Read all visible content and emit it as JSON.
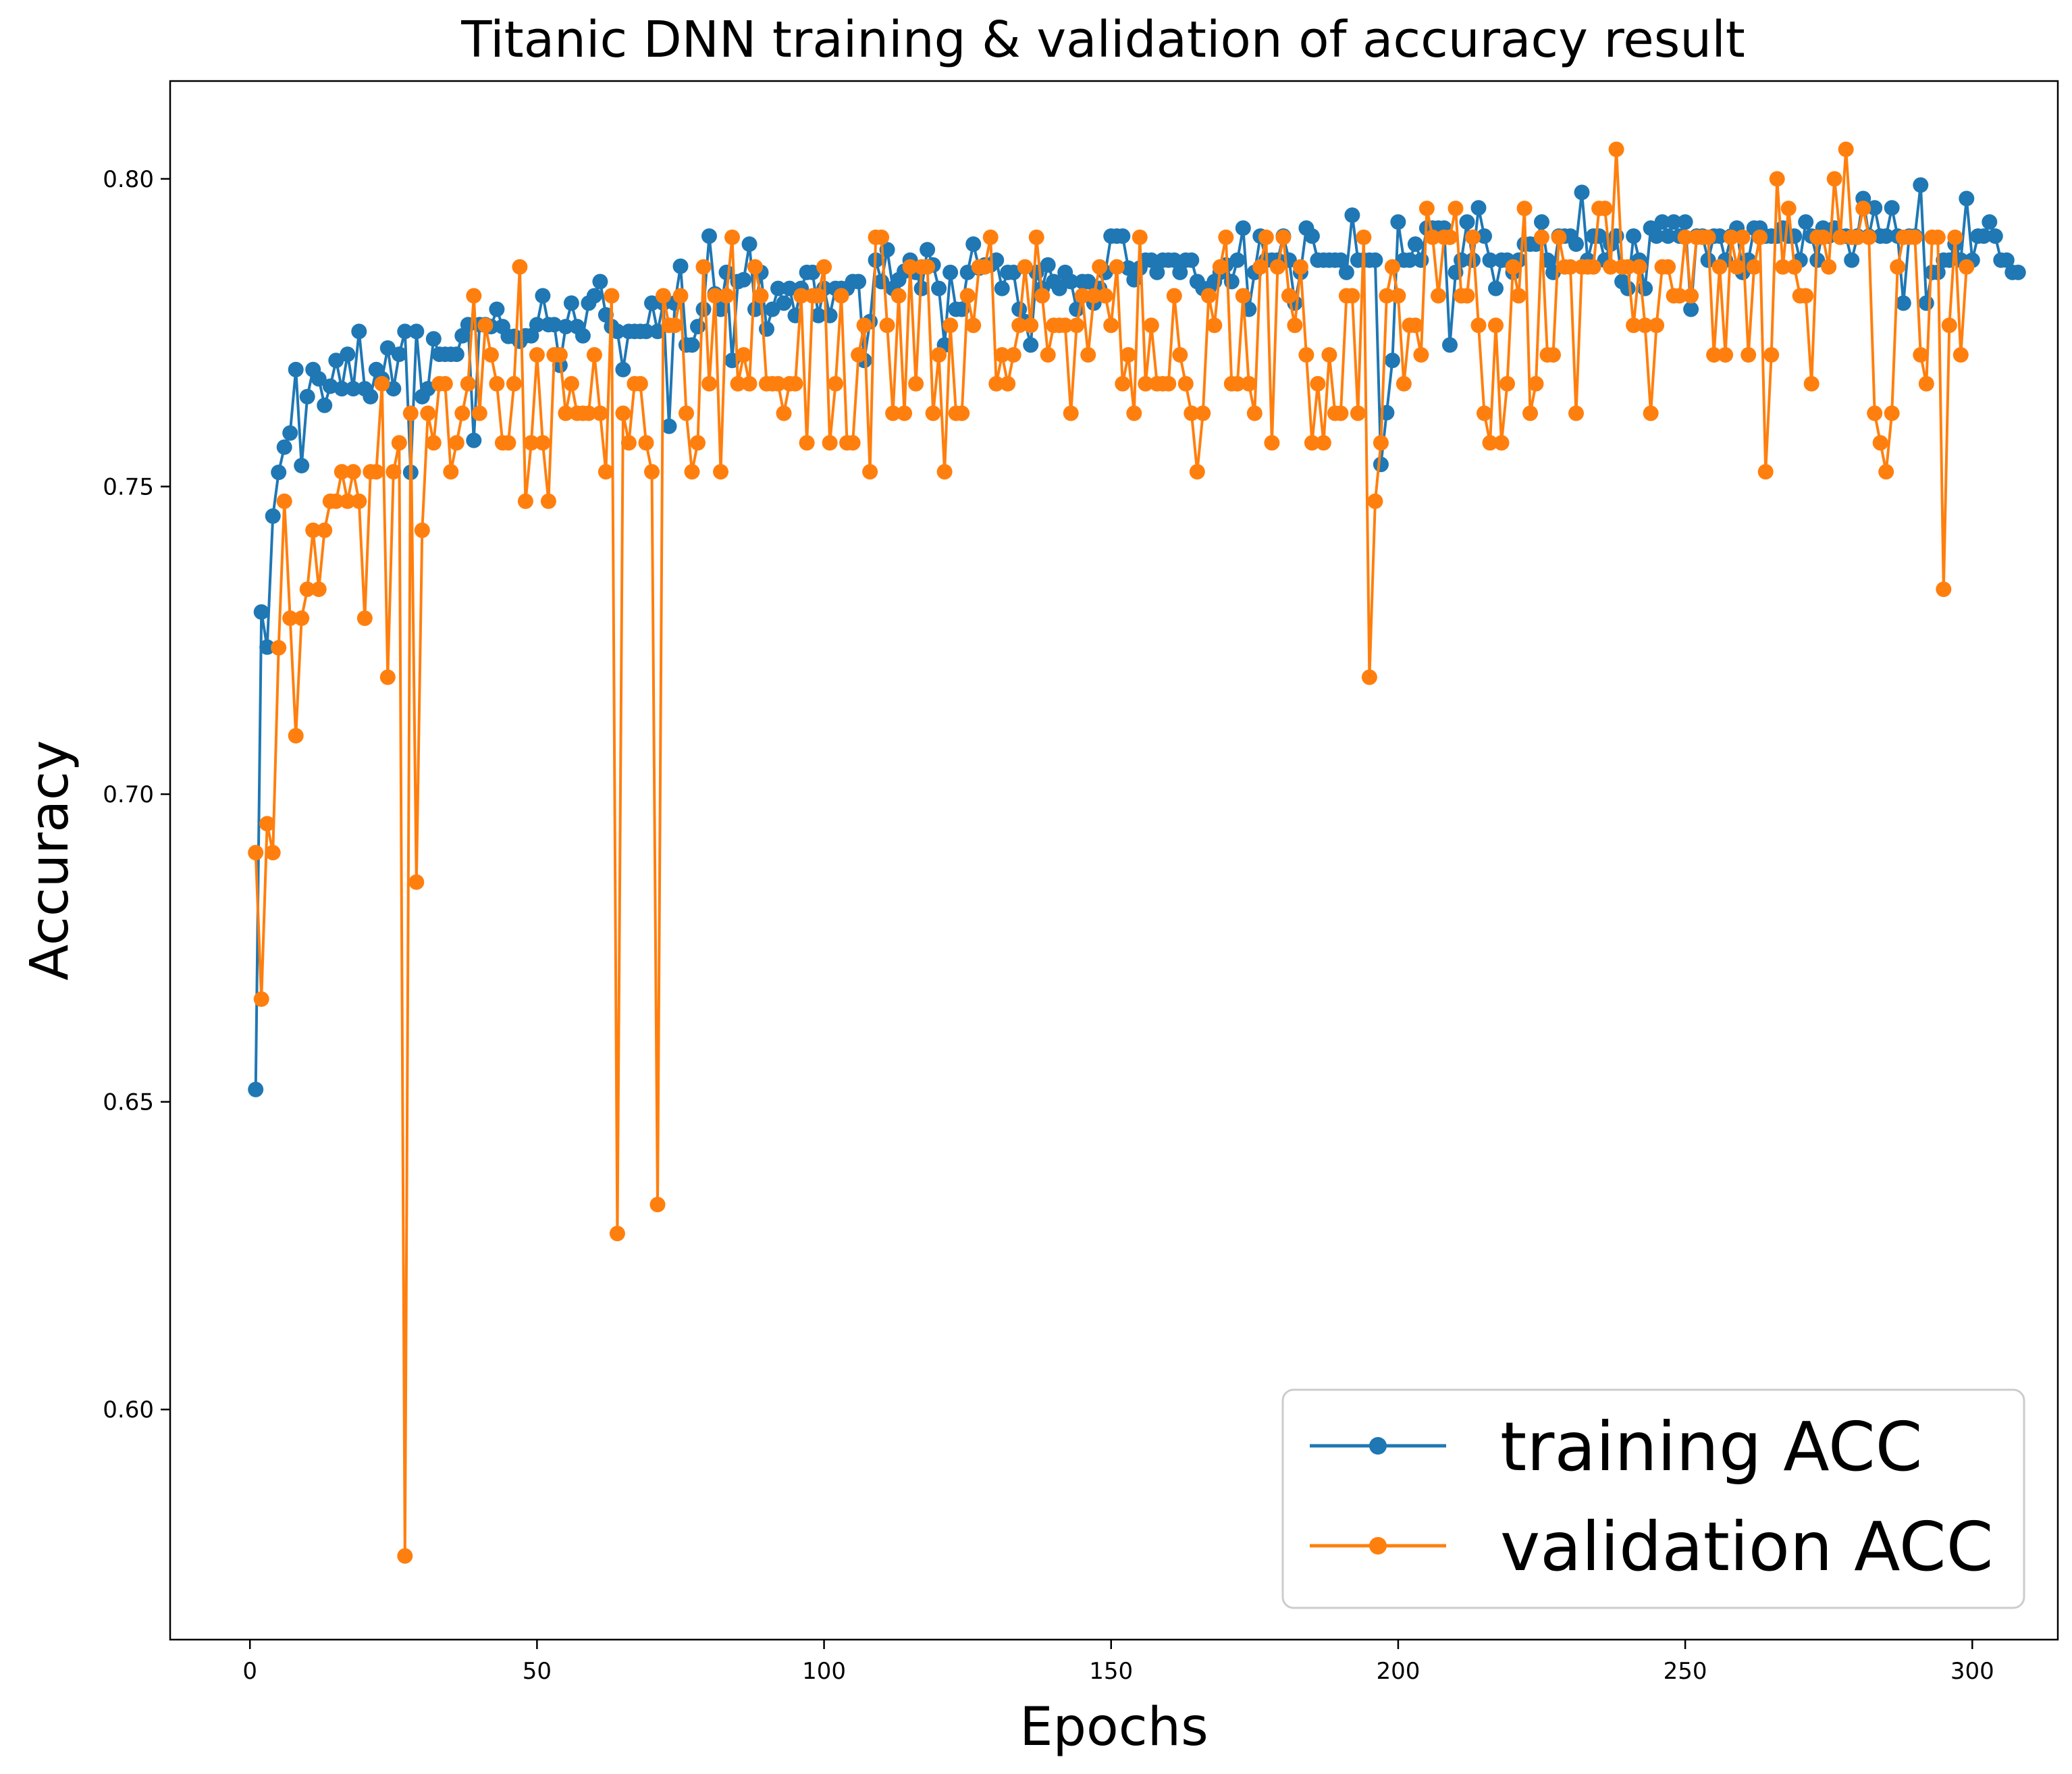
{
  "chart_data": {
    "type": "line",
    "title": "Titanic DNN training & validation of accuracy result",
    "xlabel": "Epochs",
    "ylabel": "Accuracy",
    "xlim": [
      -13.9,
      314.9
    ],
    "ylim": [
      0.5626,
      0.8159
    ],
    "xticks": [
      0,
      50,
      100,
      150,
      200,
      250,
      300
    ],
    "yticks": [
      0.6,
      0.65,
      0.7,
      0.75,
      0.8
    ],
    "ytick_labels": [
      "0.60",
      "0.65",
      "0.70",
      "0.75",
      "0.80"
    ],
    "grid": false,
    "legend_position": "lower right",
    "series": [
      {
        "name": "training ACC",
        "color": "#1f77b4",
        "marker": "circle",
        "x_start": 1,
        "x_step": 1,
        "values": [
          0.652,
          0.7296,
          0.7239,
          0.7452,
          0.7523,
          0.7564,
          0.7587,
          0.769,
          0.7534,
          0.7646,
          0.769,
          0.7675,
          0.7632,
          0.7663,
          0.7705,
          0.7659,
          0.7715,
          0.7659,
          0.7752,
          0.7659,
          0.7646,
          0.769,
          0.7675,
          0.7725,
          0.7659,
          0.7715,
          0.7752,
          0.7523,
          0.7752,
          0.7646,
          0.7659,
          0.774,
          0.7715,
          0.7715,
          0.7715,
          0.7715,
          0.7745,
          0.7763,
          0.7575,
          0.7763,
          0.7763,
          0.776,
          0.7788,
          0.776,
          0.7744,
          0.7744,
          0.7736,
          0.7745,
          0.7745,
          0.7763,
          0.781,
          0.7763,
          0.7763,
          0.7697,
          0.776,
          0.7798,
          0.776,
          0.7745,
          0.7798,
          0.781,
          0.7833,
          0.7779,
          0.776,
          0.7752,
          0.769,
          0.7752,
          0.7752,
          0.7752,
          0.7752,
          0.7798,
          0.7752,
          0.7798,
          0.7598,
          0.7798,
          0.7858,
          0.773,
          0.773,
          0.776,
          0.7788,
          0.7907,
          0.7813,
          0.7788,
          0.7848,
          0.7705,
          0.7833,
          0.7836,
          0.7894,
          0.7788,
          0.7848,
          0.7756,
          0.7788,
          0.7822,
          0.7798,
          0.7822,
          0.7778,
          0.7822,
          0.7848,
          0.7848,
          0.7778,
          0.7822,
          0.7778,
          0.7822,
          0.7822,
          0.7822,
          0.7833,
          0.7833,
          0.7705,
          0.7768,
          0.7868,
          0.7833,
          0.7885,
          0.7822,
          0.7836,
          0.785,
          0.7868,
          0.7848,
          0.7822,
          0.7885,
          0.786,
          0.7822,
          0.773,
          0.7848,
          0.7788,
          0.7788,
          0.7848,
          0.7894,
          0.7855,
          0.786,
          0.786,
          0.7868,
          0.7822,
          0.7848,
          0.7848,
          0.7788,
          0.7768,
          0.773,
          0.7848,
          0.7822,
          0.786,
          0.7833,
          0.7822,
          0.7848,
          0.7833,
          0.7788,
          0.7833,
          0.7833,
          0.7798,
          0.7822,
          0.7848,
          0.7907,
          0.7907,
          0.7907,
          0.7855,
          0.7836,
          0.7855,
          0.7868,
          0.7868,
          0.7848,
          0.7868,
          0.7868,
          0.7868,
          0.7848,
          0.7868,
          0.7868,
          0.7833,
          0.7822,
          0.7822,
          0.7833,
          0.7848,
          0.786,
          0.7833,
          0.7868,
          0.792,
          0.7788,
          0.7848,
          0.7907,
          0.7868,
          0.7868,
          0.7868,
          0.7907,
          0.7868,
          0.7798,
          0.7848,
          0.792,
          0.7907,
          0.7868,
          0.7868,
          0.7868,
          0.7868,
          0.7868,
          0.7848,
          0.7941,
          0.7868,
          0.7868,
          0.7868,
          0.7868,
          0.7536,
          0.762,
          0.7705,
          0.793,
          0.7868,
          0.7868,
          0.7894,
          0.7868,
          0.792,
          0.792,
          0.792,
          0.792,
          0.773,
          0.7848,
          0.7868,
          0.793,
          0.7868,
          0.7953,
          0.7907,
          0.7868,
          0.7822,
          0.7868,
          0.7868,
          0.7848,
          0.7868,
          0.7894,
          0.7894,
          0.7894,
          0.793,
          0.7868,
          0.7848,
          0.7907,
          0.7907,
          0.7907,
          0.7894,
          0.7978,
          0.7868,
          0.7907,
          0.7907,
          0.7868,
          0.7894,
          0.7907,
          0.7833,
          0.7822,
          0.7907,
          0.7868,
          0.7822,
          0.792,
          0.7907,
          0.793,
          0.7907,
          0.793,
          0.7907,
          0.793,
          0.7788,
          0.7907,
          0.7907,
          0.7868,
          0.7907,
          0.7907,
          0.7868,
          0.7907,
          0.792,
          0.7848,
          0.7868,
          0.792,
          0.792,
          0.7907,
          0.7907,
          0.7907,
          0.792,
          0.7907,
          0.7907,
          0.7868,
          0.793,
          0.7907,
          0.7868,
          0.792,
          0.7907,
          0.792,
          0.7907,
          0.7907,
          0.7868,
          0.7907,
          0.7968,
          0.7907,
          0.7953,
          0.7907,
          0.7907,
          0.7953,
          0.7907,
          0.7798,
          0.7907,
          0.7907,
          0.799,
          0.7798,
          0.7848,
          0.7848,
          0.7868,
          0.7868,
          0.7894,
          0.7868,
          0.7968,
          0.7868,
          0.7907,
          0.7907,
          0.793,
          0.7907,
          0.7868,
          0.7868,
          0.7848,
          0.7848
        ]
      },
      {
        "name": "validation ACC",
        "color": "#ff7f0e",
        "marker": "circle",
        "x_start": 1,
        "x_step": 1,
        "values": [
          0.6905,
          0.6667,
          0.6952,
          0.6905,
          0.7238,
          0.7476,
          0.7286,
          0.7095,
          0.7286,
          0.7333,
          0.7429,
          0.7333,
          0.7429,
          0.7476,
          0.7476,
          0.7524,
          0.7476,
          0.7524,
          0.7476,
          0.7286,
          0.7524,
          0.7524,
          0.7667,
          0.719,
          0.7524,
          0.7571,
          0.5762,
          0.7619,
          0.6857,
          0.7429,
          0.7619,
          0.7571,
          0.7667,
          0.7667,
          0.7524,
          0.7571,
          0.7619,
          0.7667,
          0.781,
          0.7619,
          0.7762,
          0.7714,
          0.7667,
          0.7571,
          0.7571,
          0.7667,
          0.7857,
          0.7476,
          0.7571,
          0.7714,
          0.7571,
          0.7476,
          0.7714,
          0.7714,
          0.7619,
          0.7667,
          0.7619,
          0.7619,
          0.7619,
          0.7714,
          0.7619,
          0.7524,
          0.781,
          0.6286,
          0.7619,
          0.7571,
          0.7667,
          0.7667,
          0.7571,
          0.7524,
          0.6333,
          0.781,
          0.7762,
          0.7762,
          0.781,
          0.7619,
          0.7524,
          0.7571,
          0.7857,
          0.7667,
          0.781,
          0.7524,
          0.781,
          0.7905,
          0.7667,
          0.7714,
          0.7667,
          0.7857,
          0.781,
          0.7667,
          0.7667,
          0.7667,
          0.7619,
          0.7667,
          0.7667,
          0.781,
          0.7571,
          0.781,
          0.781,
          0.7857,
          0.7571,
          0.7667,
          0.781,
          0.7571,
          0.7571,
          0.7714,
          0.7762,
          0.7524,
          0.7905,
          0.7905,
          0.7762,
          0.7619,
          0.781,
          0.7619,
          0.7857,
          0.7667,
          0.7857,
          0.7857,
          0.7619,
          0.7714,
          0.7524,
          0.7762,
          0.7619,
          0.7619,
          0.781,
          0.7762,
          0.7857,
          0.7857,
          0.7905,
          0.7667,
          0.7714,
          0.7667,
          0.7714,
          0.7762,
          0.7857,
          0.7762,
          0.7905,
          0.781,
          0.7714,
          0.7762,
          0.7762,
          0.7762,
          0.7619,
          0.7762,
          0.781,
          0.7714,
          0.781,
          0.7857,
          0.781,
          0.7762,
          0.7857,
          0.7667,
          0.7714,
          0.7619,
          0.7905,
          0.7667,
          0.7762,
          0.7667,
          0.7667,
          0.7667,
          0.781,
          0.7714,
          0.7667,
          0.7619,
          0.7524,
          0.7619,
          0.781,
          0.7762,
          0.7857,
          0.7905,
          0.7667,
          0.7667,
          0.781,
          0.7667,
          0.7619,
          0.7857,
          0.7905,
          0.7571,
          0.7857,
          0.7905,
          0.781,
          0.7762,
          0.7857,
          0.7714,
          0.7571,
          0.7667,
          0.7571,
          0.7714,
          0.7619,
          0.7619,
          0.781,
          0.781,
          0.7619,
          0.7905,
          0.719,
          0.7476,
          0.7571,
          0.781,
          0.7857,
          0.781,
          0.7667,
          0.7762,
          0.7762,
          0.7714,
          0.7952,
          0.7905,
          0.781,
          0.7905,
          0.7905,
          0.7952,
          0.781,
          0.781,
          0.7905,
          0.7762,
          0.7619,
          0.7571,
          0.7762,
          0.7571,
          0.7667,
          0.7857,
          0.781,
          0.7952,
          0.7619,
          0.7667,
          0.7905,
          0.7714,
          0.7714,
          0.7905,
          0.7857,
          0.7857,
          0.7619,
          0.7857,
          0.7857,
          0.7857,
          0.7952,
          0.7952,
          0.7857,
          0.8048,
          0.7857,
          0.7857,
          0.7762,
          0.7857,
          0.7762,
          0.7619,
          0.7762,
          0.7857,
          0.7857,
          0.781,
          0.781,
          0.7905,
          0.781,
          0.7905,
          0.7905,
          0.7905,
          0.7714,
          0.7857,
          0.7714,
          0.7905,
          0.7857,
          0.7905,
          0.7714,
          0.7857,
          0.7905,
          0.7524,
          0.7714,
          0.8,
          0.7857,
          0.7952,
          0.7857,
          0.781,
          0.781,
          0.7667,
          0.7905,
          0.7905,
          0.7857,
          0.8,
          0.7905,
          0.8048,
          0.7905,
          0.7905,
          0.7952,
          0.7905,
          0.7619,
          0.7571,
          0.7524,
          0.7619,
          0.7857,
          0.7905,
          0.7905,
          0.7905,
          0.7714,
          0.7667,
          0.7905,
          0.7905,
          0.7333,
          0.7762,
          0.7905,
          0.7714,
          0.7857
        ]
      }
    ]
  }
}
